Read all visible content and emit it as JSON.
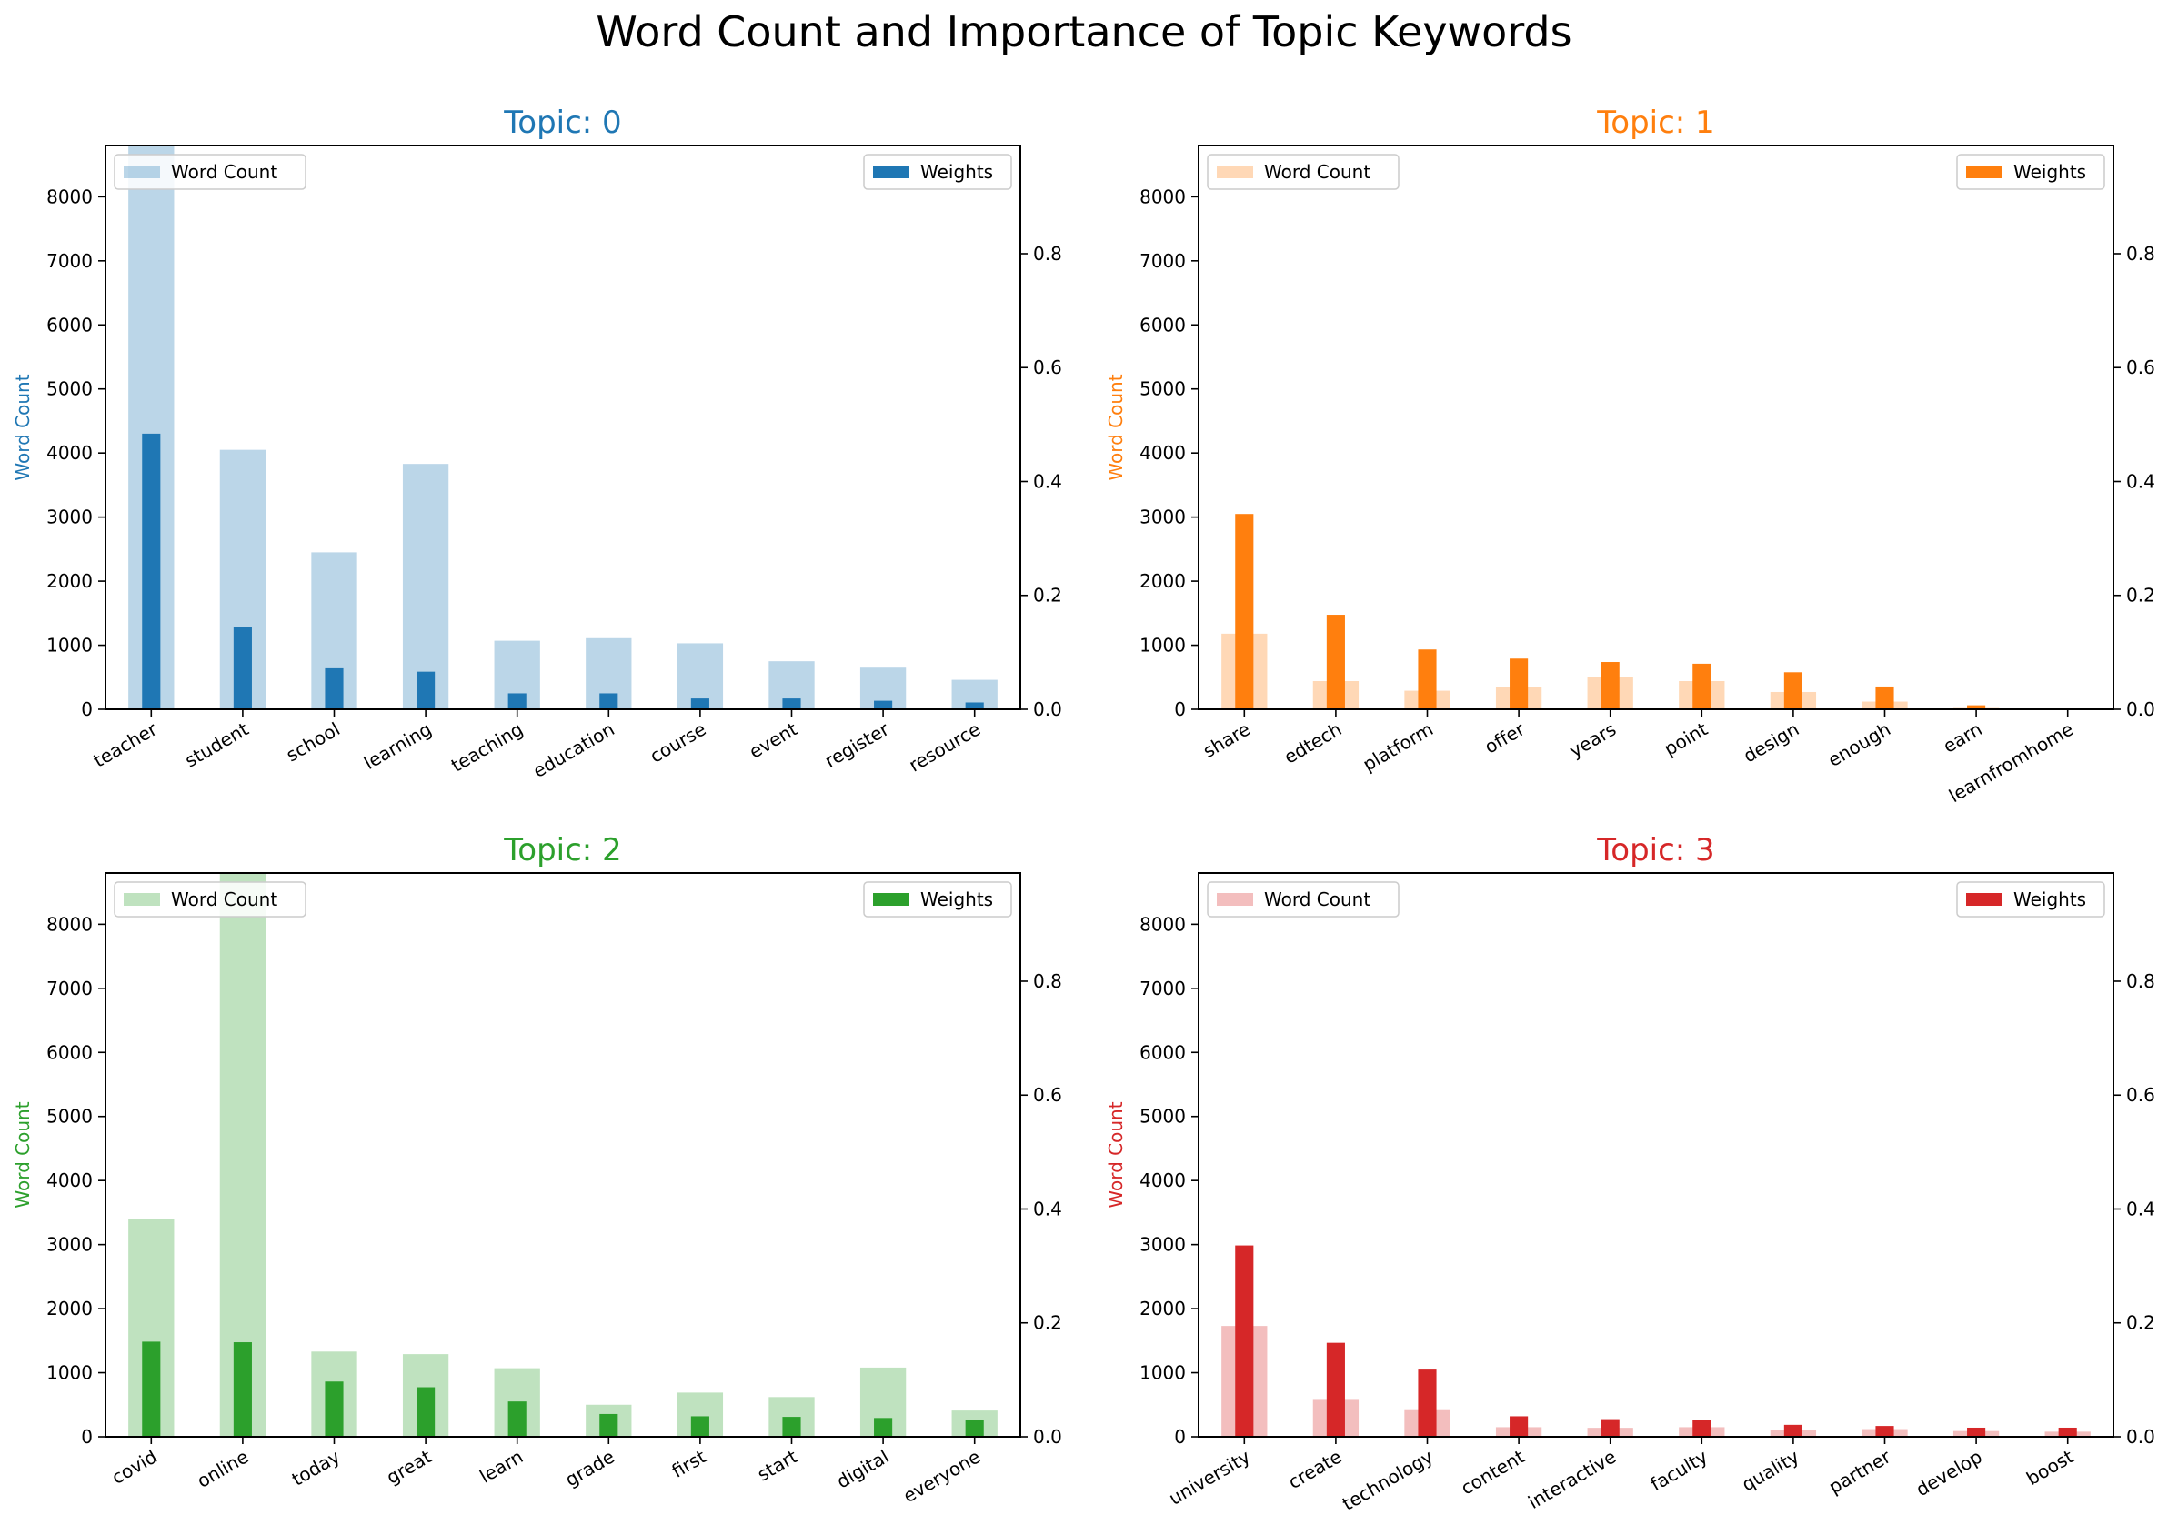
{
  "title": "Word Count and Importance of Topic Keywords",
  "chart_data": [
    {
      "type": "bar",
      "title": "Topic: 0",
      "color": "#1f77b4",
      "ylabel": "Word Count",
      "ylim": [
        0,
        8800
      ],
      "y2lim": [
        0,
        0.99
      ],
      "legend": [
        "Word Count",
        "Weights"
      ],
      "categories": [
        "teacher",
        "student",
        "school",
        "learning",
        "teaching",
        "education",
        "course",
        "event",
        "register",
        "resource"
      ],
      "series": [
        {
          "name": "Word Count",
          "values": [
            8800,
            4050,
            2450,
            3830,
            1070,
            1110,
            1030,
            750,
            650,
            460
          ]
        },
        {
          "name": "Weights",
          "values": [
            0.484,
            0.144,
            0.072,
            0.066,
            0.028,
            0.028,
            0.019,
            0.019,
            0.015,
            0.012
          ]
        }
      ]
    },
    {
      "type": "bar",
      "title": "Topic: 1",
      "color": "#ff7f0e",
      "ylabel": "Word Count",
      "ylim": [
        0,
        8800
      ],
      "y2lim": [
        0,
        0.99
      ],
      "legend": [
        "Word Count",
        "Weights"
      ],
      "categories": [
        "share",
        "edtech",
        "platform",
        "offer",
        "years",
        "point",
        "design",
        "enough",
        "earn",
        "learnfromhome"
      ],
      "series": [
        {
          "name": "Word Count",
          "values": [
            1180,
            440,
            290,
            350,
            510,
            440,
            270,
            120,
            20,
            5
          ]
        },
        {
          "name": "Weights",
          "values": [
            0.343,
            0.166,
            0.105,
            0.089,
            0.083,
            0.08,
            0.065,
            0.04,
            0.007,
            0.001
          ]
        }
      ]
    },
    {
      "type": "bar",
      "title": "Topic: 2",
      "color": "#2ca02c",
      "ylabel": "Word Count",
      "ylim": [
        0,
        8800
      ],
      "y2lim": [
        0,
        0.99
      ],
      "legend": [
        "Word Count",
        "Weights"
      ],
      "categories": [
        "covid",
        "online",
        "today",
        "great",
        "learn",
        "grade",
        "first",
        "start",
        "digital",
        "everyone"
      ],
      "series": [
        {
          "name": "Word Count",
          "values": [
            3400,
            8800,
            1330,
            1290,
            1070,
            500,
            690,
            620,
            1080,
            410
          ]
        },
        {
          "name": "Weights",
          "values": [
            0.167,
            0.166,
            0.097,
            0.087,
            0.062,
            0.04,
            0.036,
            0.035,
            0.033,
            0.029
          ]
        }
      ]
    },
    {
      "type": "bar",
      "title": "Topic: 3",
      "color": "#d62728",
      "ylabel": "Word Count",
      "ylim": [
        0,
        8800
      ],
      "y2lim": [
        0,
        0.99
      ],
      "legend": [
        "Word Count",
        "Weights"
      ],
      "categories": [
        "university",
        "create",
        "technology",
        "content",
        "interactive",
        "faculty",
        "quality",
        "partner",
        "develop",
        "boost"
      ],
      "series": [
        {
          "name": "Word Count",
          "values": [
            1730,
            590,
            430,
            150,
            140,
            150,
            110,
            120,
            90,
            80
          ]
        },
        {
          "name": "Weights",
          "values": [
            0.336,
            0.165,
            0.118,
            0.036,
            0.031,
            0.03,
            0.021,
            0.019,
            0.016,
            0.016
          ]
        }
      ]
    }
  ]
}
